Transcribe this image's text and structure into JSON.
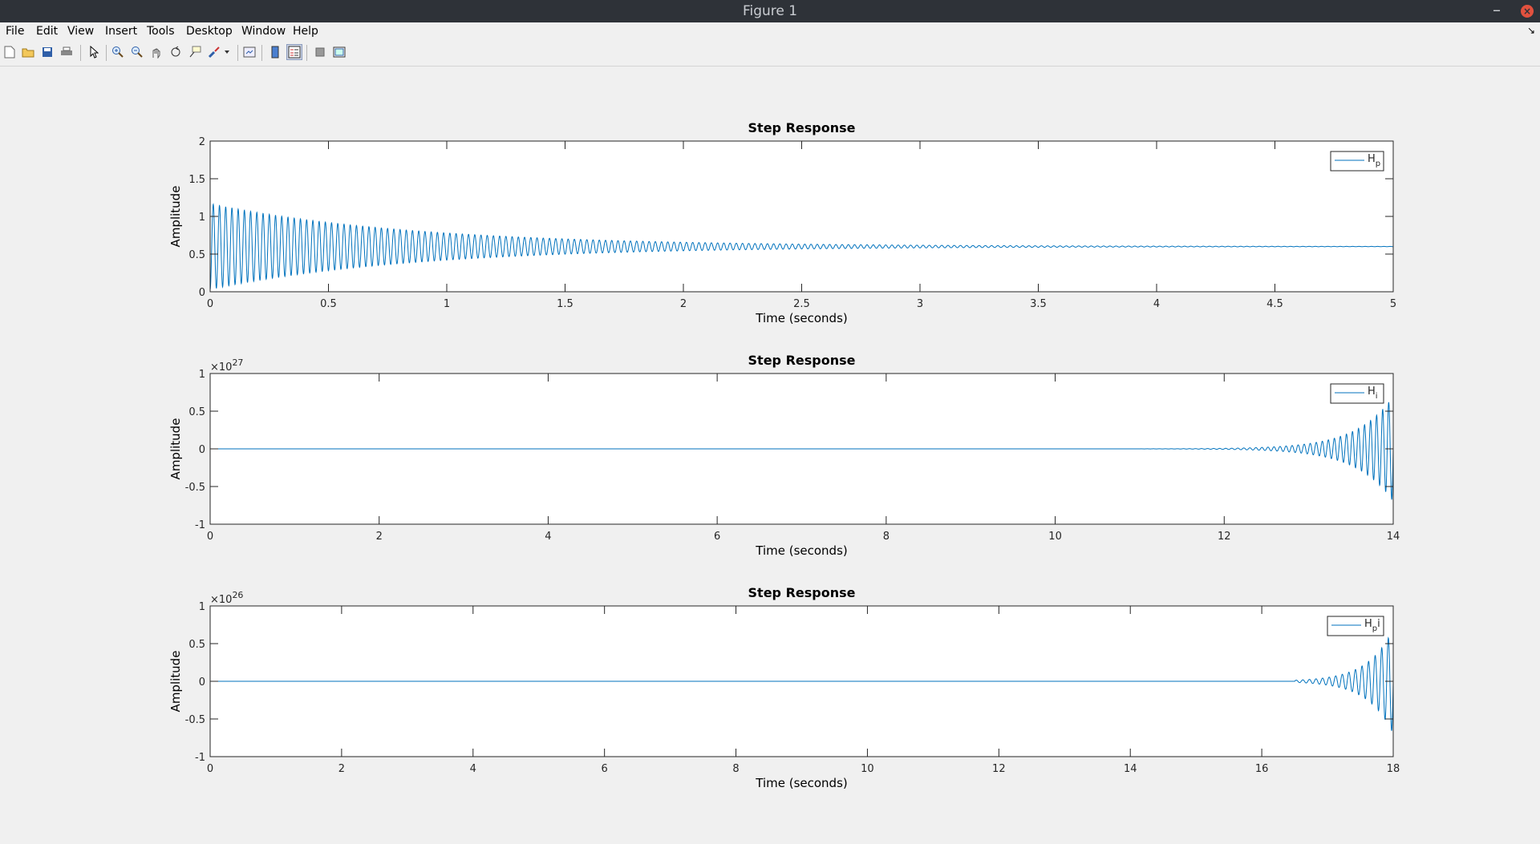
{
  "window": {
    "title": "Figure 1",
    "minimize": "–",
    "close": "×"
  },
  "menu": [
    "File",
    "Edit",
    "View",
    "Insert",
    "Tools",
    "Desktop",
    "Window",
    "Help"
  ],
  "menu_corner": "↘",
  "toolbar": [
    {
      "icon": "new-figure-icon"
    },
    {
      "icon": "open-file-icon"
    },
    {
      "icon": "save-icon"
    },
    {
      "icon": "print-icon"
    },
    {
      "icon": "edit-plot-icon"
    },
    {
      "icon": "zoom-in-icon"
    },
    {
      "icon": "zoom-out-icon"
    },
    {
      "icon": "pan-icon"
    },
    {
      "icon": "rotate-3d-icon"
    },
    {
      "icon": "data-cursor-icon"
    },
    {
      "icon": "brush-icon"
    },
    {
      "icon": "brush-dropdown-icon"
    },
    {
      "icon": "link-plot-icon"
    },
    {
      "icon": "insert-colorbar-icon"
    },
    {
      "icon": "insert-legend-icon"
    },
    {
      "icon": "hide-plot-tools-icon"
    },
    {
      "icon": "show-plot-tools-icon"
    }
  ],
  "colors": {
    "line": "#0072bd",
    "axes_bg": "#ffffff",
    "figure_bg": "#f0f0f0"
  },
  "chart_data": [
    {
      "type": "line",
      "title": "Step Response",
      "xlabel": "Time (seconds)",
      "ylabel": "Amplitude",
      "xlim": [
        0,
        5
      ],
      "ylim": [
        0,
        2
      ],
      "xticks": [
        "0",
        "0.5",
        "1",
        "1.5",
        "2",
        "2.5",
        "3",
        "3.5",
        "4",
        "4.5",
        "5"
      ],
      "yticks": [
        "0",
        "0.5",
        "1",
        "1.5",
        "2"
      ],
      "exponent": "",
      "legend": {
        "base": "H",
        "sub": "p",
        "suffix": "",
        "placement": "top-right"
      },
      "series": [
        {
          "name": "Hp",
          "envelope": {
            "kind": "decaying",
            "center": 0.6,
            "amp0": 0.57,
            "rate": 1.15,
            "freq": 38
          }
        }
      ]
    },
    {
      "type": "line",
      "title": "Step Response",
      "xlabel": "Time (seconds)",
      "ylabel": "Amplitude",
      "xlim": [
        0,
        14
      ],
      "ylim": [
        -1,
        1
      ],
      "xticks": [
        "0",
        "2",
        "4",
        "6",
        "8",
        "10",
        "12",
        "14"
      ],
      "yticks": [
        "-1",
        "-0.5",
        "0",
        "0.5",
        "1"
      ],
      "exponent": "27",
      "legend": {
        "base": "H",
        "sub": "i",
        "suffix": "",
        "placement": "top-right"
      },
      "series": [
        {
          "name": "Hi",
          "envelope": {
            "kind": "growing",
            "center": 0,
            "ampEnd": 0.7,
            "rate": 2.3,
            "freq": 14,
            "start": 11
          }
        }
      ]
    },
    {
      "type": "line",
      "title": "Step Response",
      "xlabel": "Time (seconds)",
      "ylabel": "Amplitude",
      "xlim": [
        0,
        18
      ],
      "ylim": [
        -1,
        1
      ],
      "xticks": [
        "0",
        "2",
        "4",
        "6",
        "8",
        "10",
        "12",
        "14",
        "16",
        "18"
      ],
      "yticks": [
        "-1",
        "-0.5",
        "0",
        "0.5",
        "1"
      ],
      "exponent": "26",
      "legend": {
        "base": "H",
        "sub": "p",
        "suffix": "i",
        "placement": "top-right"
      },
      "series": [
        {
          "name": "Hpi",
          "envelope": {
            "kind": "growing",
            "center": 0,
            "ampEnd": 0.7,
            "rate": 2.6,
            "freq": 10,
            "start": 16.5
          }
        }
      ]
    }
  ]
}
